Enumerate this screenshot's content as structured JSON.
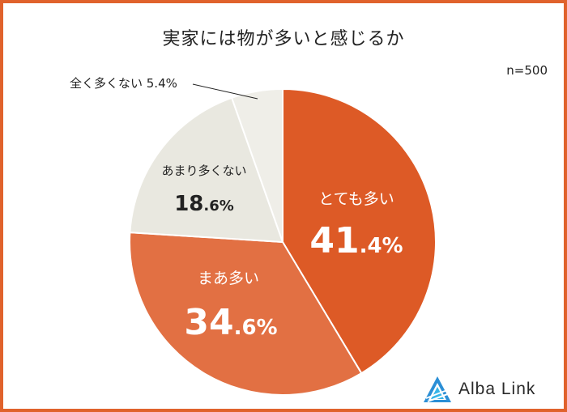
{
  "chart_data": {
    "type": "pie",
    "title": "実家には物が多いと感じるか",
    "sample_size": "n=500",
    "slices": [
      {
        "label": "とても多い",
        "value": 41.4,
        "int": "41",
        "dec": ".4%",
        "color": "#dd5a26"
      },
      {
        "label": "まあ多い",
        "value": 34.6,
        "int": "34",
        "dec": ".6%",
        "color": "#e27043"
      },
      {
        "label": "あまり多くない",
        "value": 18.6,
        "int": "18",
        "dec": ".6%",
        "color": "#e9e8e0"
      },
      {
        "label": "全く多くない",
        "value": 5.4,
        "int": "",
        "dec": "5.4%",
        "color": "#efeee8"
      }
    ],
    "outside_label": "全く多くない 5.4%"
  },
  "logo": {
    "text": "Alba Link",
    "color": "#2b8fd6"
  }
}
